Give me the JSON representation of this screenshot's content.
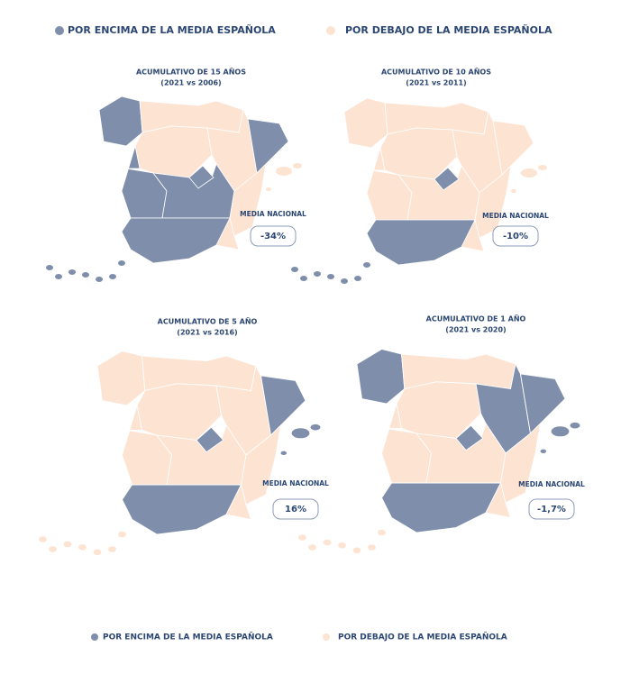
{
  "legend_top": [
    {
      "label": "POR ENCIMA DE LA MEDIA ESPAÑOLA"
    },
    {
      "label": "POR DEBAJO DE LA MEDIA ESPAÑOLA"
    }
  ],
  "maps": [
    {
      "title": "ACUMULATIVO DE 15 AÑOS",
      "subtitle": "(2021 vs 2006)",
      "media_label": "MEDIA NACIONAL",
      "media_value": "-34%"
    },
    {
      "title": "ACUMULATIVO DE 10 AÑOS",
      "subtitle": "(2021 vs 2011)",
      "media_label": "MEDIA NACIONAL",
      "media_value": "-10%"
    },
    {
      "title": "ACUMULATIVO DE 5 AÑO",
      "subtitle": "(2021 vs 2016)",
      "media_label": "MEDIA NACIONAL",
      "media_value": "16%"
    },
    {
      "title": "ACUMULATIVO DE 1 AÑO",
      "subtitle": "(2021 vs 2020)",
      "media_label": "MEDIA NACIONAL",
      "media_value": "-1,7%"
    }
  ],
  "legend_bottom": [
    {
      "label": "POR ENCIMA DE LA MEDIA ESPAÑOLA"
    },
    {
      "label": "POR DEBAJO DE LA MEDIA ESPAÑOLA"
    }
  ]
}
